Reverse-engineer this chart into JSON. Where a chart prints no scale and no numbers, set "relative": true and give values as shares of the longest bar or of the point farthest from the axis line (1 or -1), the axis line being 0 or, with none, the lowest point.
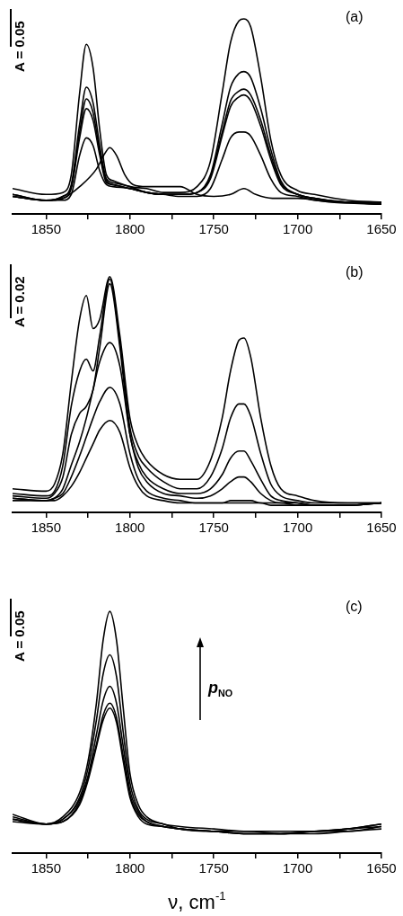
{
  "chart_data": [
    {
      "type": "line",
      "relative": true,
      "marker": "none",
      "grid": false,
      "legend": false,
      "xlim": [
        1870,
        1650
      ],
      "xticks": [
        1850,
        {
          "value": 1825,
          "label": null
        },
        1800,
        {
          "value": 1775,
          "label": null
        },
        1750,
        {
          "value": 1725,
          "label": null
        },
        1700,
        {
          "value": 1675,
          "label": null
        },
        1650
      ],
      "annotations": [
        "(a)",
        "A = 0.05"
      ],
      "x": [
        1870,
        1850,
        1840,
        1835,
        1830,
        1826,
        1822,
        1818,
        1814,
        1810,
        1800,
        1790,
        1780,
        1770,
        1760,
        1752,
        1745,
        1740,
        1735,
        1732,
        1728,
        1722,
        1716,
        1710,
        1700,
        1690,
        1670,
        1650
      ],
      "series": [
        {
          "color": "#000000",
          "values": [
            0.13,
            0.1,
            0.11,
            0.2,
            0.62,
            0.87,
            0.75,
            0.43,
            0.2,
            0.17,
            0.14,
            0.13,
            0.11,
            0.11,
            0.14,
            0.27,
            0.62,
            0.88,
            0.99,
            1.0,
            0.96,
            0.7,
            0.38,
            0.2,
            0.12,
            0.1,
            0.07,
            0.06
          ]
        },
        {
          "color": "#000000",
          "values": [
            0.1,
            0.07,
            0.09,
            0.15,
            0.46,
            0.65,
            0.57,
            0.35,
            0.18,
            0.16,
            0.14,
            0.11,
            0.1,
            0.1,
            0.11,
            0.2,
            0.46,
            0.65,
            0.72,
            0.73,
            0.7,
            0.54,
            0.33,
            0.17,
            0.1,
            0.08,
            0.06,
            0.06
          ]
        },
        {
          "color": "#000000",
          "values": [
            0.1,
            0.07,
            0.09,
            0.14,
            0.42,
            0.59,
            0.52,
            0.32,
            0.17,
            0.15,
            0.13,
            0.11,
            0.1,
            0.1,
            0.11,
            0.19,
            0.42,
            0.58,
            0.63,
            0.64,
            0.61,
            0.48,
            0.3,
            0.16,
            0.1,
            0.08,
            0.06,
            0.06
          ]
        },
        {
          "color": "#000000",
          "values": [
            0.09,
            0.07,
            0.08,
            0.13,
            0.39,
            0.54,
            0.48,
            0.3,
            0.16,
            0.15,
            0.13,
            0.11,
            0.1,
            0.1,
            0.11,
            0.18,
            0.4,
            0.55,
            0.6,
            0.61,
            0.58,
            0.45,
            0.28,
            0.15,
            0.1,
            0.08,
            0.06,
            0.05
          ]
        },
        {
          "color": "#000000",
          "values": [
            0.09,
            0.07,
            0.07,
            0.1,
            0.3,
            0.39,
            0.35,
            0.22,
            0.15,
            0.14,
            0.13,
            0.11,
            0.1,
            0.09,
            0.09,
            0.13,
            0.28,
            0.39,
            0.42,
            0.42,
            0.4,
            0.3,
            0.18,
            0.11,
            0.09,
            0.07,
            0.06,
            0.05
          ]
        },
        {
          "color": "#000000",
          "x": [
            1870,
            1850,
            1840,
            1830,
            1820,
            1815,
            1812,
            1808,
            1803,
            1798,
            1790,
            1780,
            1770,
            1760,
            1750,
            1740,
            1732,
            1725,
            1715,
            1700,
            1680,
            1650
          ],
          "values": [
            0.09,
            0.07,
            0.08,
            0.14,
            0.23,
            0.31,
            0.34,
            0.3,
            0.2,
            0.15,
            0.14,
            0.14,
            0.14,
            0.1,
            0.09,
            0.1,
            0.13,
            0.1,
            0.08,
            0.08,
            0.06,
            0.05
          ]
        }
      ]
    },
    {
      "type": "line",
      "relative": true,
      "marker": "none",
      "grid": false,
      "legend": false,
      "xlim": [
        1870,
        1650
      ],
      "xticks": [
        1850,
        {
          "value": 1825,
          "label": null
        },
        1800,
        {
          "value": 1775,
          "label": null
        },
        1750,
        {
          "value": 1725,
          "label": null
        },
        1700,
        {
          "value": 1675,
          "label": null
        },
        1650
      ],
      "annotations": [
        "(b)",
        "A = 0.02"
      ],
      "x": [
        1870,
        1850,
        1845,
        1840,
        1835,
        1830,
        1826,
        1822,
        1818,
        1812,
        1806,
        1800,
        1795,
        1790,
        1780,
        1770,
        1760,
        1752,
        1745,
        1740,
        1735,
        1732,
        1728,
        1722,
        1716,
        1710,
        1700,
        1690,
        1670,
        1650
      ],
      "series": [
        {
          "color": "#000000",
          "values": [
            0.1,
            0.09,
            0.12,
            0.25,
            0.55,
            0.82,
            0.92,
            0.78,
            0.82,
            1.0,
            0.75,
            0.4,
            0.28,
            0.22,
            0.16,
            0.14,
            0.14,
            0.22,
            0.4,
            0.6,
            0.73,
            0.74,
            0.66,
            0.4,
            0.2,
            0.1,
            0.07,
            0.05,
            0.04,
            0.04
          ]
        },
        {
          "color": "#000000",
          "values": [
            0.08,
            0.07,
            0.09,
            0.2,
            0.45,
            0.6,
            0.65,
            0.6,
            0.75,
            0.99,
            0.72,
            0.36,
            0.24,
            0.19,
            0.13,
            0.1,
            0.1,
            0.15,
            0.27,
            0.4,
            0.46,
            0.46,
            0.41,
            0.25,
            0.12,
            0.07,
            0.05,
            0.04,
            0.04,
            0.04
          ]
        },
        {
          "color": "#000000",
          "values": [
            0.07,
            0.06,
            0.08,
            0.15,
            0.33,
            0.42,
            0.45,
            0.52,
            0.7,
            0.97,
            0.7,
            0.33,
            0.21,
            0.15,
            0.1,
            0.08,
            0.08,
            0.1,
            0.16,
            0.23,
            0.26,
            0.26,
            0.22,
            0.14,
            0.07,
            0.05,
            0.04,
            0.03,
            0.03,
            0.04
          ]
        },
        {
          "color": "#000000",
          "values": [
            0.06,
            0.05,
            0.06,
            0.1,
            0.2,
            0.3,
            0.4,
            0.52,
            0.64,
            0.72,
            0.62,
            0.33,
            0.19,
            0.13,
            0.08,
            0.07,
            0.06,
            0.07,
            0.1,
            0.13,
            0.15,
            0.15,
            0.13,
            0.08,
            0.05,
            0.04,
            0.04,
            0.03,
            0.03,
            0.04
          ]
        },
        {
          "color": "#000000",
          "values": [
            0.06,
            0.05,
            0.06,
            0.08,
            0.15,
            0.24,
            0.32,
            0.4,
            0.47,
            0.53,
            0.46,
            0.25,
            0.14,
            0.09,
            0.06,
            0.05,
            0.04,
            0.04,
            0.04,
            0.05,
            0.05,
            0.05,
            0.05,
            0.04,
            0.04,
            0.04,
            0.03,
            0.03,
            0.03,
            0.04
          ]
        },
        {
          "color": "#000000",
          "values": [
            0.05,
            0.05,
            0.05,
            0.07,
            0.11,
            0.17,
            0.23,
            0.29,
            0.35,
            0.39,
            0.34,
            0.19,
            0.11,
            0.07,
            0.05,
            0.04,
            0.04,
            0.04,
            0.04,
            0.04,
            0.04,
            0.04,
            0.04,
            0.04,
            0.03,
            0.03,
            0.03,
            0.03,
            0.03,
            0.04
          ]
        }
      ]
    },
    {
      "type": "line",
      "relative": true,
      "marker": "none",
      "grid": false,
      "legend": false,
      "xlim": [
        1870,
        1650
      ],
      "xticks": [
        1850,
        {
          "value": 1825,
          "label": null
        },
        1800,
        {
          "value": 1775,
          "label": null
        },
        1750,
        {
          "value": 1725,
          "label": null
        },
        1700,
        {
          "value": 1675,
          "label": null
        },
        1650
      ],
      "xlabel": "ν, cm$^{-1}$",
      "annotations": [
        "(c)",
        "A = 0.05",
        "p$_{NO}$"
      ],
      "x": [
        1870,
        1850,
        1840,
        1830,
        1825,
        1820,
        1816,
        1812,
        1808,
        1804,
        1800,
        1795,
        1790,
        1780,
        1770,
        1750,
        1730,
        1710,
        1690,
        1670,
        1650
      ],
      "series": [
        {
          "color": "#000000",
          "values": [
            0.16,
            0.12,
            0.15,
            0.25,
            0.38,
            0.62,
            0.88,
            1.0,
            0.88,
            0.6,
            0.33,
            0.2,
            0.15,
            0.12,
            0.11,
            0.1,
            0.09,
            0.09,
            0.09,
            0.1,
            0.12
          ]
        },
        {
          "color": "#000000",
          "values": [
            0.15,
            0.12,
            0.14,
            0.23,
            0.35,
            0.55,
            0.74,
            0.82,
            0.73,
            0.5,
            0.29,
            0.18,
            0.14,
            0.12,
            0.1,
            0.09,
            0.09,
            0.08,
            0.09,
            0.1,
            0.12
          ]
        },
        {
          "color": "#000000",
          "values": [
            0.14,
            0.12,
            0.14,
            0.22,
            0.32,
            0.49,
            0.63,
            0.69,
            0.62,
            0.44,
            0.26,
            0.17,
            0.13,
            0.11,
            0.1,
            0.09,
            0.08,
            0.08,
            0.09,
            0.1,
            0.11
          ]
        },
        {
          "color": "#000000",
          "values": [
            0.14,
            0.12,
            0.13,
            0.21,
            0.31,
            0.45,
            0.57,
            0.62,
            0.56,
            0.4,
            0.24,
            0.16,
            0.13,
            0.11,
            0.1,
            0.09,
            0.08,
            0.08,
            0.09,
            0.09,
            0.11
          ]
        },
        {
          "color": "#000000",
          "values": [
            0.13,
            0.12,
            0.13,
            0.2,
            0.3,
            0.44,
            0.55,
            0.6,
            0.54,
            0.38,
            0.23,
            0.15,
            0.12,
            0.11,
            0.1,
            0.09,
            0.08,
            0.08,
            0.08,
            0.09,
            0.1
          ]
        }
      ]
    }
  ]
}
